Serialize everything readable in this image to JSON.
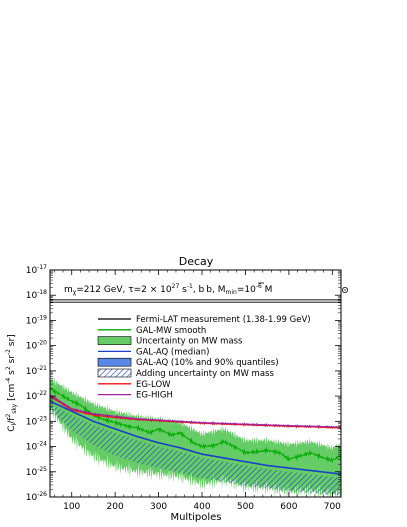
{
  "chart_data": {
    "type": "line",
    "title": "Decay",
    "annotation": "mχ=212 GeV, τ=2 × 10²⁷ s⁻¹, b b̅, Mmin=10⁻⁶ M⊙",
    "annotation_parts": {
      "m": "m",
      "m_sub": "χ",
      "mid": "=212 GeV, τ=2 × 10",
      "tau_exp": "27",
      "s": " s",
      "s_exp": "-1",
      "sep": ", ",
      "b": "b",
      "bbar": "b",
      "mmin": ", M",
      "mmin_sub": "min",
      "eq": "=10",
      "mmin_exp": "-6",
      "msun": " M"
    },
    "xlabel": "Multipoles",
    "ylabel": "Cₗ/f²sky [cm⁻⁴ s² sr⁻² sr]",
    "ylabel_parts": {
      "c": "C",
      "c_sub": "l",
      "f": "/f",
      "f_sub": "sky",
      "f_sup": "2",
      "unit": " [cm",
      "u1": "-4",
      "s": " s",
      "u2": "2",
      "sr": " sr",
      "u3": "-2",
      "end": " sr]"
    },
    "xlim": [
      50,
      720
    ],
    "ylim_log10": [
      -26,
      -17
    ],
    "y_scale": "log",
    "x_ticks": [
      100,
      200,
      300,
      400,
      500,
      600,
      700
    ],
    "y_ticks_exp": [
      -26,
      -25,
      -24,
      -23,
      -22,
      -21,
      -20,
      -19,
      -18,
      -17
    ],
    "y_tick_base": "10",
    "legend_placement": "top-center",
    "legend": [
      {
        "label": "Fermi-LAT measurement (1.38-1.99 GeV)",
        "style": "line",
        "color": "#000000"
      },
      {
        "label": "GAL-MW smooth",
        "style": "line",
        "color": "#00aa00"
      },
      {
        "label": "Uncertainty on MW mass",
        "style": "box",
        "color": "#66cc66"
      },
      {
        "label": "GAL-AQ (median)",
        "style": "line",
        "color": "#1a3fcc"
      },
      {
        "label": "GAL-AQ (10% and 90% quantiles)",
        "style": "box",
        "color": "#5b87e6"
      },
      {
        "label": "Adding uncertainty on MW mass",
        "style": "hatch",
        "color": "#1a3fcc"
      },
      {
        "label": "EG-LOW",
        "style": "line",
        "color": "#ee1111"
      },
      {
        "label": "EG-HIGH",
        "style": "line",
        "color": "#a020a0"
      }
    ],
    "series": [
      {
        "name": "Fermi-LAT measurement (1.38-1.99 GeV)",
        "x": [
          50,
          720
        ],
        "y_log10_band": [
          -18.28,
          -18.18
        ]
      },
      {
        "name": "GAL-AQ (median)",
        "x": [
          50,
          100,
          150,
          200,
          250,
          300,
          350,
          400,
          450,
          500,
          550,
          600,
          650,
          700,
          720
        ],
        "y_log10": [
          -22.2,
          -22.6,
          -23.0,
          -23.3,
          -23.6,
          -23.85,
          -24.05,
          -24.3,
          -24.45,
          -24.6,
          -24.75,
          -24.85,
          -24.95,
          -25.05,
          -25.1
        ]
      },
      {
        "name": "GAL-MW smooth",
        "x": [
          50,
          80,
          100,
          120,
          150,
          170,
          200,
          230,
          250,
          280,
          300,
          330,
          350,
          380,
          400,
          430,
          450,
          480,
          500,
          530,
          550,
          580,
          600,
          630,
          650,
          680,
          700,
          720
        ],
        "y_log10": [
          -21.7,
          -22.0,
          -22.2,
          -22.35,
          -22.75,
          -22.9,
          -23.05,
          -23.2,
          -23.25,
          -23.45,
          -23.3,
          -23.55,
          -23.45,
          -23.85,
          -24.0,
          -23.95,
          -23.8,
          -24.05,
          -24.25,
          -24.2,
          -24.15,
          -24.25,
          -24.5,
          -24.35,
          -24.25,
          -24.45,
          -24.55,
          -24.35
        ]
      },
      {
        "name": "Uncertainty on MW mass",
        "x": [
          50,
          100,
          150,
          200,
          250,
          300,
          350,
          400,
          450,
          500,
          550,
          600,
          650,
          700,
          720
        ],
        "y_log10_upper": [
          -21.3,
          -21.85,
          -22.3,
          -22.6,
          -22.8,
          -22.9,
          -23.05,
          -23.5,
          -23.3,
          -23.75,
          -23.75,
          -23.9,
          -23.8,
          -24.05,
          -23.9
        ],
        "y_log10_lower": [
          -22.5,
          -23.7,
          -24.4,
          -24.8,
          -25.0,
          -25.1,
          -25.2,
          -25.5,
          -25.35,
          -25.6,
          -25.65,
          -25.8,
          -25.75,
          -25.9,
          -25.85
        ]
      },
      {
        "name": "Adding uncertainty on MW mass",
        "x": [
          50,
          100,
          150,
          200,
          250,
          300,
          350,
          400,
          450,
          500,
          550,
          600,
          650,
          700,
          720
        ],
        "y_log10_upper": [
          -22.3,
          -22.75,
          -23.15,
          -23.45,
          -23.75,
          -24.0,
          -24.2,
          -24.45,
          -24.6,
          -24.75,
          -24.9,
          -25.0,
          -25.1,
          -25.2,
          -25.25
        ],
        "y_log10_lower": [
          -22.55,
          -23.35,
          -23.95,
          -24.35,
          -24.65,
          -24.85,
          -25.05,
          -25.25,
          -25.4,
          -25.55,
          -25.65,
          -25.75,
          -25.85,
          -25.9,
          -25.95
        ]
      },
      {
        "name": "EG-LOW",
        "x": [
          50,
          100,
          150,
          200,
          250,
          300,
          350,
          400,
          450,
          500,
          550,
          600,
          650,
          700,
          720
        ],
        "y_log10": [
          -22.0,
          -22.55,
          -22.75,
          -22.85,
          -22.93,
          -22.98,
          -23.03,
          -23.08,
          -23.11,
          -23.14,
          -23.17,
          -23.2,
          -23.22,
          -23.25,
          -23.26
        ]
      },
      {
        "name": "EG-HIGH",
        "x": [
          50,
          100,
          150,
          200,
          250,
          300,
          350,
          400,
          450,
          500,
          550,
          600,
          650,
          700,
          720
        ],
        "y_log10": [
          -21.95,
          -22.5,
          -22.7,
          -22.8,
          -22.9,
          -22.95,
          -23.0,
          -23.05,
          -23.08,
          -23.11,
          -23.14,
          -23.17,
          -23.19,
          -23.22,
          -23.23
        ]
      }
    ]
  },
  "colors": {
    "mw_band": "#66cc66",
    "mw_line": "#00aa00",
    "aq_line": "#1a3fcc",
    "aq_hatch": "#1a3fcc",
    "eg_low": "#ee1111",
    "eg_high": "#a020a0",
    "fermi": "#000000"
  }
}
